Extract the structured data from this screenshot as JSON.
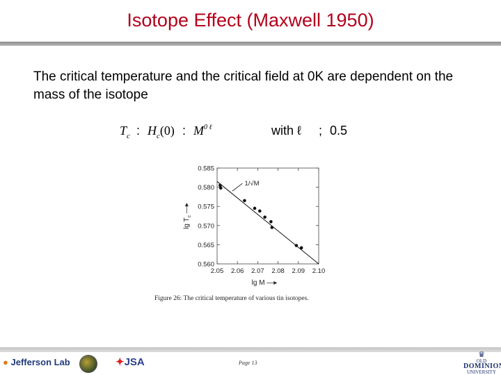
{
  "slide": {
    "title": "Isotope Effect (Maxwell 1950)",
    "intro": "The critical temperature and the critical field at 0K are dependent on the mass of the isotope"
  },
  "formula": {
    "tc": "T",
    "tc_sub": "c",
    "sep1": ":",
    "hc": "H",
    "hc_sub": "c",
    "hc_arg": "(0)",
    "sep2": ":",
    "m": "M",
    "m_sup": "0 ℓ",
    "with": "with ℓ",
    "sep3": ";",
    "value": "0.5"
  },
  "chart_data": {
    "type": "scatter",
    "xlabel": "lg M",
    "ylabel": "lg T",
    "ylabel_sub": "c",
    "xlim": [
      2.05,
      2.1
    ],
    "ylim": [
      0.56,
      0.585
    ],
    "xticks": [
      "2.05",
      "2.06",
      "2.07",
      "2.08",
      "2.09",
      "2.10"
    ],
    "yticks": [
      "0.585",
      "0.580",
      "0.575",
      "0.570",
      "0.565",
      "0.560"
    ],
    "points": [
      {
        "x": 2.0515,
        "y": 0.5805
      },
      {
        "x": 2.0518,
        "y": 0.5798
      },
      {
        "x": 2.0635,
        "y": 0.5765
      },
      {
        "x": 2.0685,
        "y": 0.5745
      },
      {
        "x": 2.071,
        "y": 0.5738
      },
      {
        "x": 2.0735,
        "y": 0.5722
      },
      {
        "x": 2.0765,
        "y": 0.571
      },
      {
        "x": 2.077,
        "y": 0.5695
      },
      {
        "x": 2.089,
        "y": 0.5648
      },
      {
        "x": 2.0915,
        "y": 0.5642
      }
    ],
    "fit_line": {
      "x": [
        2.05,
        2.1
      ],
      "y": [
        0.5815,
        0.56
      ]
    },
    "annotation": "1/√M",
    "annotation_at": {
      "x": 2.0625,
      "y": 0.581
    },
    "annotation_points_to": {
      "x": 2.0575,
      "y": 0.579
    },
    "caption": "Figure 26: The critical temperature of various tin isotopes."
  },
  "footer": {
    "page": "Page 13",
    "jlab_text": "Jefferson Lab",
    "jsa_text": "JSA",
    "odu_line1": "OLD",
    "odu_line2": "DOMINION",
    "odu_line3": "UNIVERSITY"
  }
}
